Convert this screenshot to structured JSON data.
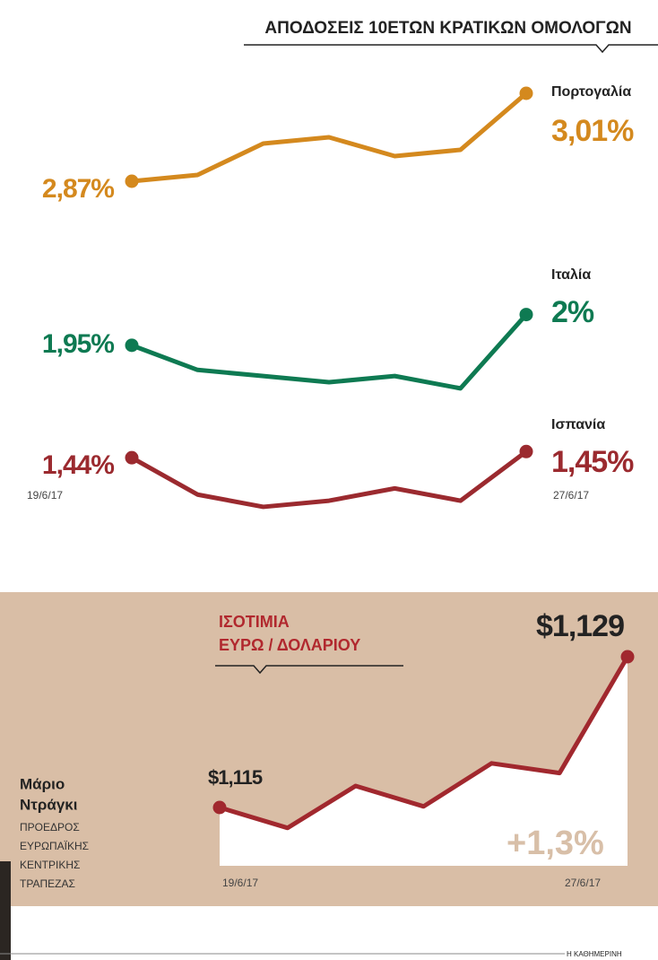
{
  "chart_data": [
    {
      "type": "line",
      "title": "ΑΠΟΔΟΣΕΙΣ 10ΕΤΩΝ ΚΡΑΤΙΚΩΝ ΟΜΟΛΟΓΩΝ",
      "series": [
        {
          "name": "Πορτογαλία",
          "color": "#d4891e",
          "values": [
            2.87,
            2.88,
            2.93,
            2.94,
            2.91,
            2.92,
            3.01
          ],
          "value_labels": [
            "2,87%",
            null,
            null,
            null,
            null,
            null,
            "3,01%"
          ]
        }
      ],
      "ylim": [
        2.83,
        3.03
      ]
    },
    {
      "type": "line",
      "series": [
        {
          "name": "Ιταλία",
          "color": "#0e7a52",
          "values": [
            1.95,
            1.91,
            1.9,
            1.89,
            1.9,
            1.88,
            2.0
          ],
          "value_labels": [
            "1,95%",
            null,
            null,
            null,
            null,
            null,
            "2%"
          ]
        }
      ],
      "ylim": [
        1.855,
        2.03
      ]
    },
    {
      "type": "line",
      "x": [
        "19/6/17",
        null,
        null,
        null,
        null,
        null,
        "27/6/17"
      ],
      "series": [
        {
          "name": "Ισπανία",
          "color": "#9b2a2f",
          "values": [
            1.44,
            1.38,
            1.36,
            1.37,
            1.39,
            1.37,
            1.45
          ],
          "value_labels": [
            "1,44%",
            null,
            null,
            null,
            null,
            null,
            "1,45%"
          ]
        }
      ],
      "ylim": [
        1.338,
        1.484
      ]
    },
    {
      "type": "area",
      "title": [
        "ΙΣΟΤΙΜΙΑ",
        "ΕΥΡΩ / ΔΟΛΑΡΙΟΥ"
      ],
      "x": [
        "19/6/17",
        null,
        null,
        null,
        null,
        null,
        "27/6/17"
      ],
      "series": [
        {
          "color": "#a1282e",
          "values": [
            1.115,
            1.1131,
            1.117,
            1.1151,
            1.1191,
            1.1182,
            1.129
          ],
          "value_labels": [
            "$1,115",
            null,
            null,
            null,
            null,
            null,
            "$1,129"
          ]
        }
      ],
      "ylim": [
        1.11,
        1.13
      ],
      "annotation": "+1,3%"
    }
  ],
  "caption": {
    "name": [
      "Μάριο",
      "Ντράγκι"
    ],
    "role": [
      "ΠΡΟΕΔΡΟΣ",
      "ΕΥΡΩΠΑΪΚΗΣ",
      "ΚΕΝΤΡΙΚΗΣ",
      "ΤΡΑΠΕΖΑΣ"
    ]
  },
  "credit": "Η ΚΑΘΗΜΕΡΙΝΗ"
}
